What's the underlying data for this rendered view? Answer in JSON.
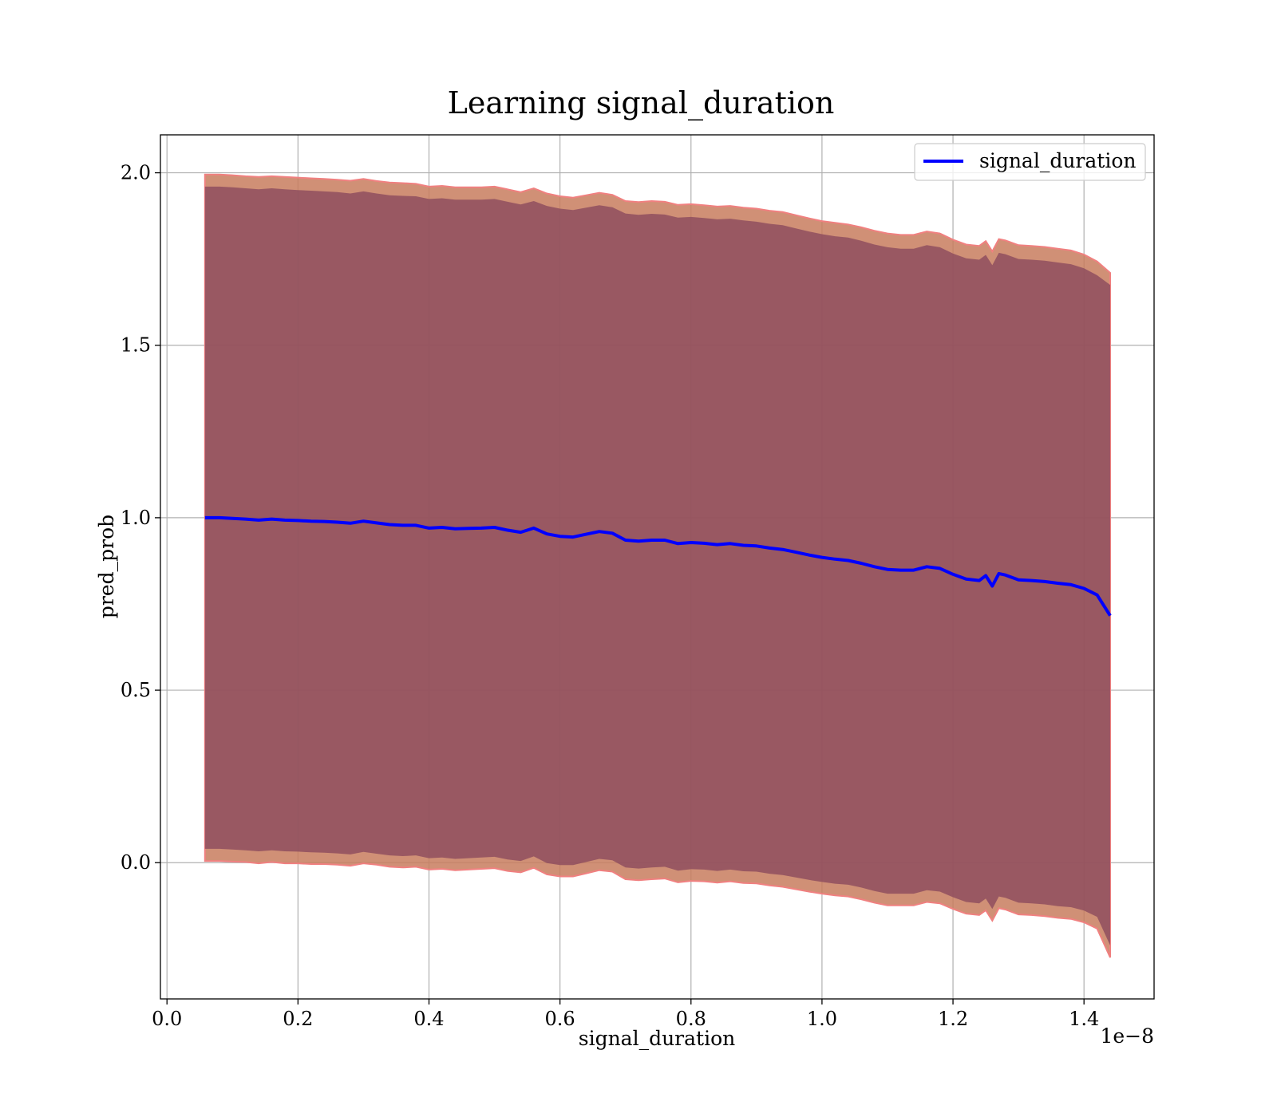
{
  "chart_data": {
    "type": "area",
    "title": "Learning signal_duration",
    "xlabel": "signal_duration",
    "ylabel": "pred_prob",
    "x_offset_label": "1e−8",
    "xlim": [
      -0.01,
      1.507
    ],
    "ylim": [
      -0.395,
      2.11
    ],
    "x_ticks": [
      0.0,
      0.2,
      0.4,
      0.6,
      0.8,
      1.0,
      1.2,
      1.4
    ],
    "x_tick_labels": [
      "0.0",
      "0.2",
      "0.4",
      "0.6",
      "0.8",
      "1.0",
      "1.2",
      "1.4"
    ],
    "y_ticks": [
      0.0,
      0.5,
      1.0,
      1.5,
      2.0
    ],
    "y_tick_labels": [
      "0.0",
      "0.5",
      "1.0",
      "1.5",
      "2.0"
    ],
    "grid": true,
    "legend_position": "top-right",
    "colors": {
      "line": "#0000ff",
      "outer_band_fill": "#c87c5e",
      "outer_band_edge": "#f08080",
      "inner_band_fill": "#8b4a5e",
      "axes": "#000000",
      "grid": "#b0b0b0"
    },
    "series": [
      {
        "name": "signal_duration",
        "style": "line",
        "x": [
          0.058,
          0.08,
          0.1,
          0.12,
          0.14,
          0.16,
          0.18,
          0.2,
          0.22,
          0.24,
          0.26,
          0.28,
          0.3,
          0.32,
          0.34,
          0.36,
          0.38,
          0.4,
          0.42,
          0.44,
          0.46,
          0.48,
          0.5,
          0.52,
          0.54,
          0.56,
          0.58,
          0.6,
          0.62,
          0.64,
          0.66,
          0.68,
          0.7,
          0.72,
          0.74,
          0.76,
          0.78,
          0.8,
          0.82,
          0.84,
          0.86,
          0.88,
          0.9,
          0.92,
          0.94,
          0.96,
          0.98,
          1.0,
          1.02,
          1.04,
          1.06,
          1.08,
          1.1,
          1.12,
          1.14,
          1.16,
          1.18,
          1.2,
          1.22,
          1.24,
          1.25,
          1.26,
          1.27,
          1.28,
          1.3,
          1.32,
          1.34,
          1.36,
          1.38,
          1.4,
          1.42,
          1.44
        ],
        "y": [
          1.0,
          1.0,
          0.998,
          0.996,
          0.993,
          0.996,
          0.993,
          0.992,
          0.99,
          0.989,
          0.987,
          0.984,
          0.99,
          0.985,
          0.98,
          0.978,
          0.978,
          0.97,
          0.972,
          0.968,
          0.969,
          0.97,
          0.972,
          0.964,
          0.958,
          0.97,
          0.953,
          0.946,
          0.944,
          0.952,
          0.96,
          0.955,
          0.935,
          0.932,
          0.935,
          0.935,
          0.925,
          0.928,
          0.926,
          0.922,
          0.925,
          0.92,
          0.918,
          0.912,
          0.908,
          0.9,
          0.892,
          0.885,
          0.88,
          0.876,
          0.868,
          0.858,
          0.85,
          0.848,
          0.848,
          0.858,
          0.853,
          0.836,
          0.822,
          0.818,
          0.832,
          0.802,
          0.838,
          0.834,
          0.82,
          0.818,
          0.815,
          0.81,
          0.806,
          0.795,
          0.776,
          0.716
        ]
      },
      {
        "name": "outer band",
        "style": "band",
        "x": [
          0.058,
          0.08,
          0.1,
          0.12,
          0.14,
          0.16,
          0.18,
          0.2,
          0.22,
          0.24,
          0.26,
          0.28,
          0.3,
          0.32,
          0.34,
          0.36,
          0.38,
          0.4,
          0.42,
          0.44,
          0.46,
          0.48,
          0.5,
          0.52,
          0.54,
          0.56,
          0.58,
          0.6,
          0.62,
          0.64,
          0.66,
          0.68,
          0.7,
          0.72,
          0.74,
          0.76,
          0.78,
          0.8,
          0.82,
          0.84,
          0.86,
          0.88,
          0.9,
          0.92,
          0.94,
          0.96,
          0.98,
          1.0,
          1.02,
          1.04,
          1.06,
          1.08,
          1.1,
          1.12,
          1.14,
          1.16,
          1.18,
          1.2,
          1.22,
          1.24,
          1.25,
          1.26,
          1.27,
          1.28,
          1.3,
          1.32,
          1.34,
          1.36,
          1.38,
          1.4,
          1.42,
          1.44
        ],
        "upper": [
          1.995,
          1.995,
          1.993,
          1.99,
          1.988,
          1.99,
          1.988,
          1.986,
          1.984,
          1.982,
          1.98,
          1.977,
          1.982,
          1.976,
          1.972,
          1.97,
          1.968,
          1.96,
          1.962,
          1.958,
          1.958,
          1.958,
          1.96,
          1.952,
          1.944,
          1.955,
          1.94,
          1.932,
          1.928,
          1.935,
          1.942,
          1.936,
          1.918,
          1.915,
          1.918,
          1.916,
          1.907,
          1.909,
          1.906,
          1.902,
          1.904,
          1.899,
          1.896,
          1.89,
          1.886,
          1.877,
          1.868,
          1.86,
          1.855,
          1.85,
          1.842,
          1.832,
          1.824,
          1.82,
          1.82,
          1.83,
          1.824,
          1.806,
          1.792,
          1.788,
          1.802,
          1.772,
          1.808,
          1.804,
          1.79,
          1.788,
          1.785,
          1.78,
          1.775,
          1.763,
          1.743,
          1.71
        ],
        "lower": [
          0.005,
          0.005,
          0.003,
          0.002,
          -0.002,
          0.002,
          -0.002,
          -0.002,
          -0.004,
          -0.004,
          -0.006,
          -0.009,
          -0.002,
          -0.006,
          -0.012,
          -0.014,
          -0.012,
          -0.02,
          -0.018,
          -0.022,
          -0.02,
          -0.018,
          -0.016,
          -0.024,
          -0.028,
          -0.015,
          -0.034,
          -0.04,
          -0.04,
          -0.031,
          -0.022,
          -0.026,
          -0.048,
          -0.051,
          -0.048,
          -0.046,
          -0.057,
          -0.053,
          -0.054,
          -0.058,
          -0.054,
          -0.059,
          -0.06,
          -0.066,
          -0.07,
          -0.077,
          -0.084,
          -0.09,
          -0.095,
          -0.098,
          -0.106,
          -0.116,
          -0.124,
          -0.124,
          -0.124,
          -0.114,
          -0.118,
          -0.134,
          -0.148,
          -0.152,
          -0.138,
          -0.168,
          -0.132,
          -0.136,
          -0.15,
          -0.152,
          -0.155,
          -0.16,
          -0.163,
          -0.173,
          -0.191,
          -0.275
        ]
      },
      {
        "name": "inner band",
        "style": "band",
        "x": [
          0.058,
          0.08,
          0.1,
          0.12,
          0.14,
          0.16,
          0.18,
          0.2,
          0.22,
          0.24,
          0.26,
          0.28,
          0.3,
          0.32,
          0.34,
          0.36,
          0.38,
          0.4,
          0.42,
          0.44,
          0.46,
          0.48,
          0.5,
          0.52,
          0.54,
          0.56,
          0.58,
          0.6,
          0.62,
          0.64,
          0.66,
          0.68,
          0.7,
          0.72,
          0.74,
          0.76,
          0.78,
          0.8,
          0.82,
          0.84,
          0.86,
          0.88,
          0.9,
          0.92,
          0.94,
          0.96,
          0.98,
          1.0,
          1.02,
          1.04,
          1.06,
          1.08,
          1.1,
          1.12,
          1.14,
          1.16,
          1.18,
          1.2,
          1.22,
          1.24,
          1.25,
          1.26,
          1.27,
          1.28,
          1.3,
          1.32,
          1.34,
          1.36,
          1.38,
          1.4,
          1.42,
          1.44
        ],
        "upper": [
          1.96,
          1.96,
          1.958,
          1.955,
          1.952,
          1.955,
          1.952,
          1.95,
          1.948,
          1.946,
          1.944,
          1.94,
          1.946,
          1.94,
          1.935,
          1.933,
          1.932,
          1.924,
          1.926,
          1.922,
          1.922,
          1.922,
          1.924,
          1.916,
          1.908,
          1.918,
          1.904,
          1.896,
          1.892,
          1.899,
          1.906,
          1.9,
          1.882,
          1.878,
          1.881,
          1.879,
          1.87,
          1.872,
          1.869,
          1.865,
          1.867,
          1.862,
          1.858,
          1.852,
          1.848,
          1.839,
          1.83,
          1.822,
          1.816,
          1.812,
          1.803,
          1.792,
          1.784,
          1.78,
          1.78,
          1.79,
          1.784,
          1.766,
          1.752,
          1.748,
          1.762,
          1.732,
          1.768,
          1.764,
          1.75,
          1.748,
          1.745,
          1.74,
          1.735,
          1.723,
          1.703,
          1.675
        ],
        "lower": [
          0.04,
          0.04,
          0.038,
          0.036,
          0.033,
          0.036,
          0.033,
          0.032,
          0.03,
          0.029,
          0.027,
          0.024,
          0.031,
          0.026,
          0.021,
          0.019,
          0.021,
          0.013,
          0.015,
          0.011,
          0.013,
          0.015,
          0.017,
          0.009,
          0.005,
          0.018,
          -0.001,
          -0.007,
          -0.007,
          0.002,
          0.011,
          0.007,
          -0.014,
          -0.017,
          -0.014,
          -0.012,
          -0.023,
          -0.019,
          -0.02,
          -0.024,
          -0.02,
          -0.025,
          -0.026,
          -0.032,
          -0.036,
          -0.043,
          -0.05,
          -0.056,
          -0.061,
          -0.064,
          -0.072,
          -0.082,
          -0.09,
          -0.09,
          -0.09,
          -0.08,
          -0.084,
          -0.1,
          -0.114,
          -0.118,
          -0.104,
          -0.134,
          -0.098,
          -0.102,
          -0.116,
          -0.118,
          -0.121,
          -0.126,
          -0.129,
          -0.139,
          -0.157,
          -0.24
        ]
      }
    ]
  }
}
